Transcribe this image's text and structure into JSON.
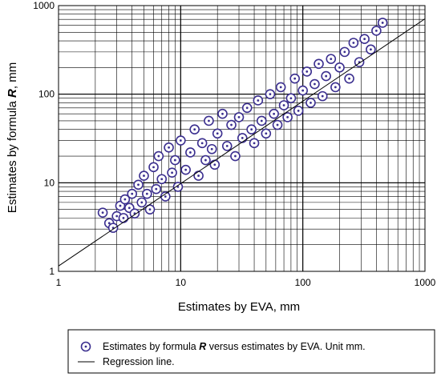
{
  "chart_data": {
    "type": "scatter",
    "xlabel": "Estimates by EVA, mm",
    "ylabel_prefix": "Estimates by formula ",
    "ylabel_var": "R",
    "ylabel_suffix": ", mm",
    "x_scale": "log",
    "y_scale": "log",
    "xlim": [
      1,
      1000
    ],
    "ylim": [
      1,
      1000
    ],
    "x_ticks": [
      "1",
      "10",
      "100",
      "1000"
    ],
    "y_ticks": [
      "1",
      "10",
      "100",
      "1000"
    ],
    "grid": true,
    "legend": {
      "placement": "bottom",
      "points_prefix": "Estimates by formula ",
      "points_var": "R",
      "points_suffix": " versus estimates by EVA. Unit mm.",
      "line": "Regression line."
    },
    "marker_color": "#3b2f8f",
    "regression_line": {
      "slope": 0.93,
      "intercept_at_x1": 1.15
    },
    "points_note_generation": "estimated cloud along regression line",
    "series": [
      {
        "kind": "points",
        "x": [
          2.3,
          2.6,
          2.8,
          3.0,
          3.2,
          3.4,
          3.5,
          3.8,
          4.0,
          4.2,
          4.5,
          4.8,
          5.0,
          5.3,
          5.6,
          6.0,
          6.3,
          6.6,
          7.0,
          7.5,
          8.0,
          8.5,
          9.0,
          9.5,
          10,
          11,
          12,
          13,
          14,
          15,
          16,
          17,
          18,
          19,
          20,
          22,
          24,
          26,
          28,
          30,
          32,
          35,
          38,
          40,
          43,
          46,
          50,
          54,
          58,
          62,
          66,
          70,
          75,
          80,
          86,
          92,
          100,
          108,
          116,
          125,
          135,
          145,
          155,
          170,
          185,
          200,
          220,
          240,
          260,
          290,
          320,
          360,
          400,
          450
        ],
        "y": [
          4.6,
          3.5,
          3.1,
          4.2,
          5.5,
          4.0,
          6.5,
          5.2,
          7.5,
          4.5,
          9.5,
          6.0,
          12,
          7.5,
          5.0,
          15,
          8.5,
          20,
          11,
          7.0,
          25,
          13,
          18,
          9.0,
          30,
          14,
          22,
          40,
          12,
          28,
          18,
          50,
          24,
          16,
          36,
          60,
          26,
          45,
          20,
          55,
          32,
          70,
          40,
          28,
          85,
          50,
          36,
          100,
          60,
          45,
          120,
          75,
          55,
          90,
          150,
          65,
          110,
          180,
          80,
          130,
          220,
          95,
          160,
          250,
          120,
          200,
          300,
          150,
          380,
          230,
          420,
          320,
          520,
          640
        ]
      }
    ]
  }
}
